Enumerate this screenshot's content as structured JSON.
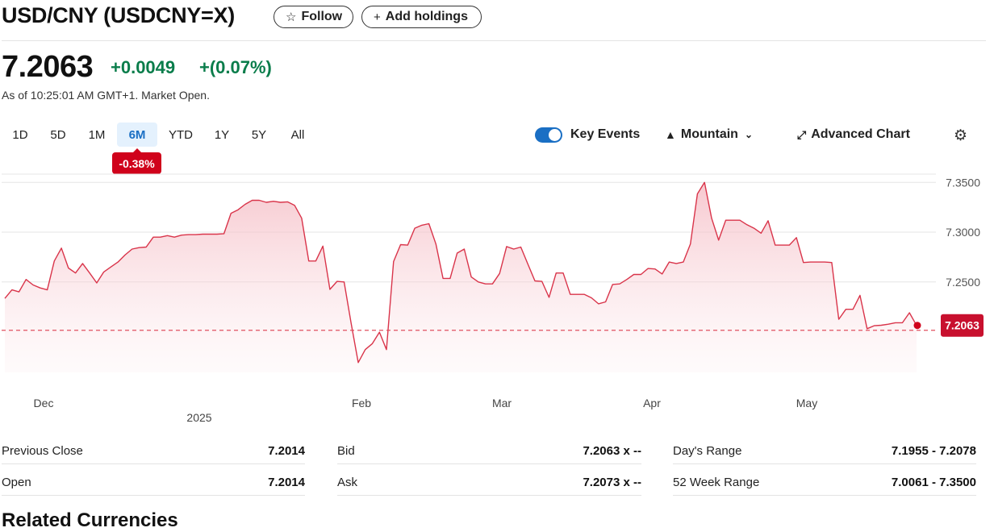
{
  "header": {
    "title": "USD/CNY (USDCNY=X)",
    "follow_label": "Follow",
    "add_holdings_label": "Add holdings"
  },
  "quote": {
    "price": "7.2063",
    "change": "+0.0049",
    "change_pct": "+(0.07%)",
    "as_of": "As of 10:25:01 AM GMT+1. Market Open.",
    "change_color": "#0a7d4b"
  },
  "ranges": {
    "items": [
      "1D",
      "5D",
      "1M",
      "6M",
      "YTD",
      "1Y",
      "5Y",
      "All"
    ],
    "selected": "6M",
    "period_change": "-0.38%"
  },
  "toolbar": {
    "key_events_label": "Key Events",
    "key_events_on": true,
    "chart_type_label": "Mountain",
    "advanced_label": "Advanced Chart",
    "icons": [
      "mountain-icon",
      "chevron-down-icon",
      "expand-icon",
      "gear-icon"
    ]
  },
  "chart_data": {
    "type": "area",
    "series": [
      {
        "values": [
          7.2335,
          7.242,
          7.24,
          7.2525,
          7.247,
          7.244,
          7.242,
          7.271,
          7.284,
          7.264,
          7.259,
          7.2685,
          7.259,
          7.249,
          7.26,
          7.265,
          7.27,
          7.277,
          7.283,
          7.2845,
          7.285,
          7.295,
          7.295,
          7.2965,
          7.295,
          7.297,
          7.2975,
          7.2975,
          7.298,
          7.298,
          7.298,
          7.2985,
          7.319,
          7.3225,
          7.328,
          7.332,
          7.332,
          7.33,
          7.331,
          7.33,
          7.3305,
          7.327,
          7.314,
          7.271,
          7.271,
          7.286,
          7.2425,
          7.2505,
          7.25,
          7.2085,
          7.169,
          7.182,
          7.188,
          7.1995,
          7.182,
          7.2705,
          7.2875,
          7.287,
          7.304,
          7.307,
          7.3085,
          7.288,
          7.2535,
          7.2535,
          7.279,
          7.283,
          7.255,
          7.25,
          7.248,
          7.248,
          7.2585,
          7.2855,
          7.283,
          7.285,
          7.268,
          7.251,
          7.2505,
          7.2345,
          7.259,
          7.259,
          7.2375,
          7.2375,
          7.2375,
          7.234,
          7.228,
          7.23,
          7.2475,
          7.248,
          7.2525,
          7.2575,
          7.2575,
          7.2635,
          7.263,
          7.258,
          7.27,
          7.2685,
          7.27,
          7.288,
          7.3385,
          7.35,
          7.314,
          7.292,
          7.312,
          7.312,
          7.312,
          7.3075,
          7.304,
          7.299,
          7.3115,
          7.287,
          7.287,
          7.287,
          7.2945,
          7.2695,
          7.27,
          7.27,
          7.27,
          7.2695,
          7.2125,
          7.2225,
          7.2225,
          7.2365,
          7.203,
          7.206,
          7.2065,
          7.2075,
          7.209,
          7.209,
          7.219,
          7.2063
        ]
      }
    ],
    "x_ticks": [
      "Dec",
      "Feb",
      "Mar",
      "Apr",
      "May"
    ],
    "year_label": "2025",
    "y_ticks": [
      "7.3500",
      "7.3000",
      "7.2500"
    ],
    "ylim": [
      7.1502,
      7.364
    ],
    "previous_close": 7.2014,
    "last_label": "7.2063",
    "grid": true,
    "line_color": "#d9344a"
  },
  "stats": {
    "rows": [
      [
        {
          "label": "Previous Close",
          "value": "7.2014"
        },
        {
          "label": "Bid",
          "value": "7.2063 x --"
        },
        {
          "label": "Day's Range",
          "value": "7.1955 - 7.2078"
        }
      ],
      [
        {
          "label": "Open",
          "value": "7.2014"
        },
        {
          "label": "Ask",
          "value": "7.2073 x --"
        },
        {
          "label": "52 Week Range",
          "value": "7.0061 - 7.3500"
        }
      ]
    ]
  },
  "next_section": {
    "heading": "Related Currencies"
  }
}
